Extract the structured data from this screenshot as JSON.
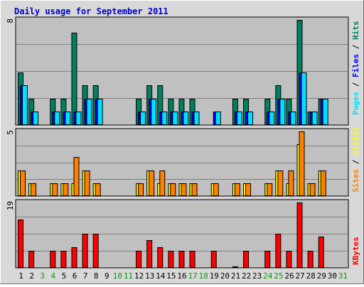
{
  "chart_data": {
    "type": "bar",
    "title": "Daily usage for September 2011",
    "categories": [
      "1",
      "2",
      "3",
      "4",
      "5",
      "6",
      "7",
      "8",
      "9",
      "10",
      "11",
      "12",
      "13",
      "14",
      "15",
      "16",
      "17",
      "18",
      "19",
      "20",
      "21",
      "22",
      "23",
      "24",
      "25",
      "26",
      "27",
      "28",
      "29",
      "30",
      "31"
    ],
    "weekend_days": [
      "3",
      "4",
      "10",
      "11",
      "17",
      "18",
      "24",
      "25",
      "31"
    ],
    "colors": {
      "title": "#0000cc",
      "chart_bg": "#c0c0c0",
      "frame_bg": "#d8d8d8",
      "pages": "#00e0ff",
      "files": "#0000ff",
      "hits": "#008060",
      "visits": "#ffff00",
      "sites": "#ff8000",
      "kbytes": "#ff0000",
      "weekday_label": "#000000",
      "weekend_label": "#00a000"
    },
    "panels": [
      {
        "id": "hits-files-pages",
        "ymax_label": "8",
        "ylim": [
          0,
          8
        ],
        "legend": [
          {
            "text": "Pages",
            "color": "#00e0ff"
          },
          {
            "text": " / ",
            "color": "#000000"
          },
          {
            "text": "Files",
            "color": "#0000ff"
          },
          {
            "text": " / ",
            "color": "#000000"
          },
          {
            "text": "Hits",
            "color": "#008060"
          }
        ],
        "series": [
          {
            "name": "Hits",
            "color": "#008060",
            "values": [
              4,
              2,
              0,
              2,
              2,
              7,
              3,
              3,
              0,
              0,
              0,
              2,
              3,
              3,
              2,
              2,
              2,
              0,
              0,
              0,
              2,
              2,
              0,
              2,
              3,
              2,
              8,
              1,
              2,
              0,
              0
            ]
          },
          {
            "name": "Files",
            "color": "#0000ff",
            "values": [
              3,
              1,
              0,
              1,
              1,
              1,
              2,
              2,
              0,
              0,
              0,
              1,
              2,
              1,
              1,
              1,
              1,
              0,
              1,
              0,
              1,
              1,
              0,
              1,
              2,
              1,
              4,
              1,
              2,
              0,
              0
            ]
          },
          {
            "name": "Pages",
            "color": "#00e0ff",
            "values": [
              3,
              1,
              0,
              1,
              1,
              1,
              2,
              2,
              0,
              0,
              0,
              1,
              2,
              1,
              1,
              1,
              1,
              0,
              1,
              0,
              1,
              1,
              0,
              1,
              2,
              1,
              4,
              1,
              2,
              0,
              0
            ]
          }
        ]
      },
      {
        "id": "visits-sites",
        "ymax_label": "5",
        "ylim": [
          0,
          5
        ],
        "legend": [
          {
            "text": "Sites",
            "color": "#ff8000"
          },
          {
            "text": " / ",
            "color": "#000000"
          },
          {
            "text": "Visits",
            "color": "#ffff00"
          }
        ],
        "series": [
          {
            "name": "Visits",
            "color": "#ffff00",
            "values": [
              2,
              1,
              0,
              1,
              1,
              1,
              2,
              1,
              0,
              0,
              0,
              1,
              2,
              1,
              1,
              1,
              1,
              0,
              1,
              0,
              1,
              1,
              0,
              1,
              2,
              1,
              4,
              1,
              2,
              0,
              0
            ]
          },
          {
            "name": "Sites",
            "color": "#ff8000",
            "values": [
              2,
              1,
              0,
              1,
              1,
              3,
              2,
              1,
              0,
              0,
              0,
              1,
              2,
              2,
              1,
              1,
              1,
              0,
              1,
              0,
              1,
              1,
              0,
              1,
              2,
              2,
              5,
              1,
              2,
              0,
              0
            ]
          }
        ]
      },
      {
        "id": "kbytes",
        "ymax_label": "19",
        "ylim": [
          0,
          19
        ],
        "legend": [
          {
            "text": "KBytes",
            "color": "#ff0000"
          }
        ],
        "series": [
          {
            "name": "KBytes",
            "color": "#ff0000",
            "values": [
              14,
              5,
              0,
              5,
              5,
              6,
              10,
              10,
              0,
              0,
              0,
              5,
              8,
              6,
              5,
              5,
              5,
              0,
              5,
              0,
              0.5,
              5,
              0,
              5,
              10,
              5,
              19,
              5,
              9,
              0,
              0
            ]
          }
        ]
      }
    ],
    "grid": true,
    "legend_position": "right, vertical"
  }
}
